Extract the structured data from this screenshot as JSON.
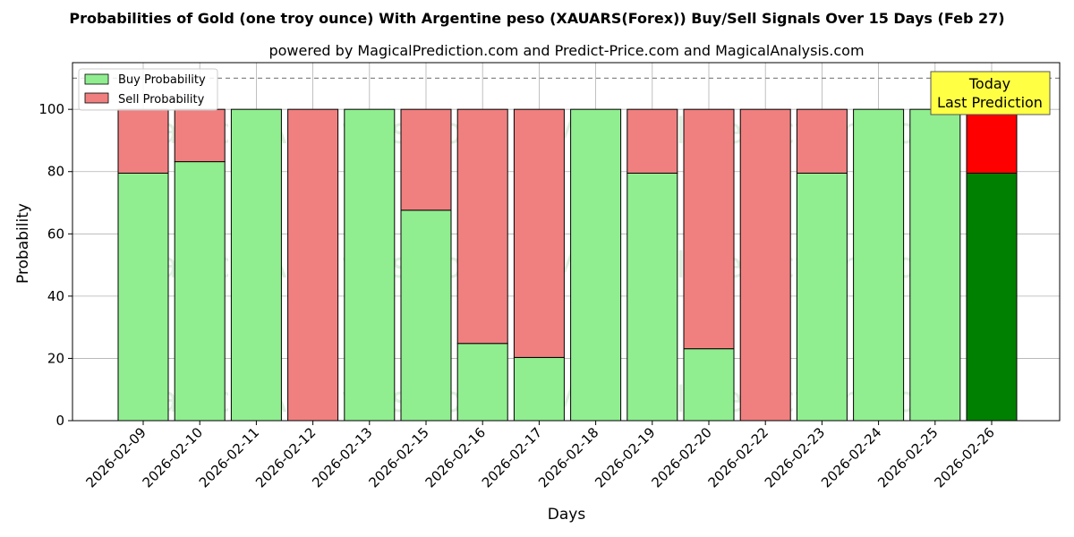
{
  "chart_data": {
    "type": "bar",
    "stacked": true,
    "title": "Probabilities of Gold (one troy ounce) With Argentine peso (XAUARS(Forex)) Buy/Sell Signals Over 15 Days (Feb 27)",
    "subtitle": "powered by MagicalPrediction.com and Predict-Price.com and MagicalAnalysis.com",
    "xlabel": "Days",
    "ylabel": "Probability",
    "ylim": [
      0,
      115
    ],
    "yticks": [
      0,
      20,
      40,
      60,
      80,
      100
    ],
    "reference_line": 110,
    "grid": true,
    "legend_placement": "top-left",
    "categories": [
      "2026-02-09",
      "2026-02-10",
      "2026-02-11",
      "2026-02-12",
      "2026-02-13",
      "2026-02-15",
      "2026-02-16",
      "2026-02-17",
      "2026-02-18",
      "2026-02-19",
      "2026-02-20",
      "2026-02-22",
      "2026-02-23",
      "2026-02-24",
      "2026-02-25",
      "2026-02-26"
    ],
    "series": [
      {
        "name": "Buy Probability",
        "color": "#90ee90",
        "values": [
          79.5,
          83.2,
          100,
          0,
          100,
          67.6,
          24.8,
          20.3,
          100,
          79.5,
          23.1,
          0,
          79.5,
          100,
          100,
          79.5
        ]
      },
      {
        "name": "Sell Probability",
        "color": "#f08080",
        "values": [
          20.5,
          16.8,
          0,
          100,
          0,
          32.4,
          75.2,
          79.7,
          0,
          20.5,
          76.9,
          100,
          20.5,
          0,
          0,
          20.5
        ]
      }
    ],
    "highlight": {
      "index": 15,
      "buy_color": "#008000",
      "sell_color": "#ff0000"
    },
    "annotation": {
      "lines": [
        "Today",
        "Last Prediction"
      ],
      "color": "#ffff44"
    },
    "watermarks": [
      "MagicalAnalysis.com",
      "MagicalPrediction.com"
    ]
  }
}
